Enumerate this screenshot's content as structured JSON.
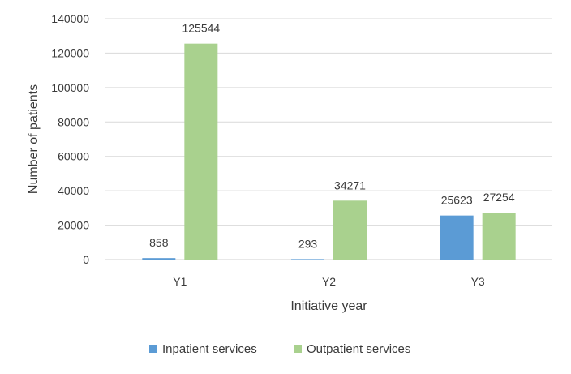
{
  "chart_data": {
    "type": "bar",
    "title": "",
    "xlabel": "Initiative year",
    "ylabel": "Number of patients",
    "categories": [
      "Y1",
      "Y2",
      "Y3"
    ],
    "series": [
      {
        "name": "Inpatient services",
        "values": [
          858,
          293,
          25623
        ],
        "color": "#5b9bd5"
      },
      {
        "name": "Outpatient services",
        "values": [
          125544,
          34271,
          27254
        ],
        "color": "#a9d18e"
      }
    ],
    "yticks": [
      0,
      20000,
      40000,
      60000,
      80000,
      100000,
      120000,
      140000
    ],
    "ylim": [
      0,
      140000
    ],
    "grid": true,
    "legend_position": "bottom",
    "data_labels": true
  }
}
